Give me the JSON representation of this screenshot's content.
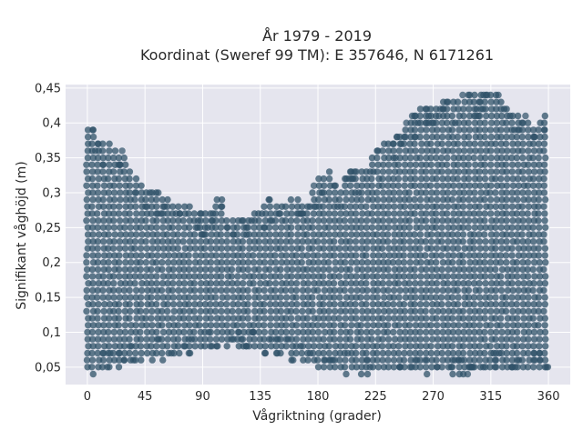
{
  "chart_data": {
    "type": "scatter",
    "title": "År 1979 - 2019",
    "subtitle": "Koordinat (Sweref 99 TM): E 357646, N 6171261",
    "xlabel": "Vågriktning (grader)",
    "ylabel": "Signifikant våghöjd (m)",
    "xlim": [
      -17,
      377
    ],
    "ylim": [
      0.025,
      0.455
    ],
    "xticks": [
      0,
      45,
      90,
      135,
      180,
      225,
      270,
      315,
      360
    ],
    "xtick_labels": [
      "0",
      "45",
      "90",
      "135",
      "180",
      "225",
      "270",
      "315",
      "360"
    ],
    "yticks": [
      0.05,
      0.1,
      0.15,
      0.2,
      0.25,
      0.3,
      0.35,
      0.4,
      0.45
    ],
    "ytick_labels": [
      "0,05",
      "0,1",
      "0,15",
      "0,2",
      "0,25",
      "0,3",
      "0,35",
      "0,4",
      "0,45"
    ],
    "grid": true,
    "colors": {
      "background": "#e5e5ee",
      "point": "#2f5168",
      "grid": "#ffffff"
    },
    "series": [
      {
        "values_description": "dense scatter; y quantized to 0.01 m; envelope given as [direction, min_height, max_height]",
        "envelope": [
          [
            0,
            0.05,
            0.39
          ],
          [
            5,
            0.04,
            0.4
          ],
          [
            10,
            0.05,
            0.37
          ],
          [
            15,
            0.05,
            0.37
          ],
          [
            20,
            0.06,
            0.37
          ],
          [
            25,
            0.05,
            0.36
          ],
          [
            30,
            0.06,
            0.35
          ],
          [
            35,
            0.06,
            0.33
          ],
          [
            40,
            0.06,
            0.32
          ],
          [
            45,
            0.07,
            0.3
          ],
          [
            50,
            0.06,
            0.31
          ],
          [
            55,
            0.07,
            0.3
          ],
          [
            60,
            0.06,
            0.29
          ],
          [
            65,
            0.07,
            0.29
          ],
          [
            70,
            0.07,
            0.28
          ],
          [
            75,
            0.08,
            0.28
          ],
          [
            80,
            0.07,
            0.28
          ],
          [
            85,
            0.08,
            0.27
          ],
          [
            90,
            0.08,
            0.27
          ],
          [
            95,
            0.08,
            0.27
          ],
          [
            100,
            0.08,
            0.29
          ],
          [
            105,
            0.09,
            0.29
          ],
          [
            110,
            0.08,
            0.26
          ],
          [
            115,
            0.09,
            0.26
          ],
          [
            120,
            0.08,
            0.26
          ],
          [
            125,
            0.08,
            0.26
          ],
          [
            130,
            0.08,
            0.27
          ],
          [
            135,
            0.08,
            0.27
          ],
          [
            140,
            0.07,
            0.29
          ],
          [
            145,
            0.08,
            0.29
          ],
          [
            150,
            0.07,
            0.28
          ],
          [
            155,
            0.08,
            0.28
          ],
          [
            160,
            0.06,
            0.3
          ],
          [
            165,
            0.07,
            0.29
          ],
          [
            170,
            0.06,
            0.28
          ],
          [
            175,
            0.06,
            0.3
          ],
          [
            180,
            0.05,
            0.32
          ],
          [
            185,
            0.05,
            0.33
          ],
          [
            190,
            0.05,
            0.33
          ],
          [
            195,
            0.05,
            0.3
          ],
          [
            200,
            0.04,
            0.32
          ],
          [
            205,
            0.05,
            0.33
          ],
          [
            210,
            0.05,
            0.33
          ],
          [
            215,
            0.04,
            0.33
          ],
          [
            220,
            0.04,
            0.34
          ],
          [
            225,
            0.05,
            0.36
          ],
          [
            230,
            0.05,
            0.37
          ],
          [
            235,
            0.05,
            0.37
          ],
          [
            240,
            0.05,
            0.38
          ],
          [
            245,
            0.05,
            0.39
          ],
          [
            250,
            0.05,
            0.4
          ],
          [
            255,
            0.05,
            0.41
          ],
          [
            260,
            0.05,
            0.42
          ],
          [
            265,
            0.04,
            0.42
          ],
          [
            270,
            0.05,
            0.42
          ],
          [
            275,
            0.05,
            0.43
          ],
          [
            280,
            0.05,
            0.43
          ],
          [
            285,
            0.04,
            0.43
          ],
          [
            290,
            0.04,
            0.43
          ],
          [
            295,
            0.04,
            0.44
          ],
          [
            300,
            0.05,
            0.44
          ],
          [
            305,
            0.05,
            0.44
          ],
          [
            310,
            0.05,
            0.44
          ],
          [
            315,
            0.05,
            0.44
          ],
          [
            320,
            0.05,
            0.44
          ],
          [
            325,
            0.05,
            0.43
          ],
          [
            330,
            0.05,
            0.42
          ],
          [
            335,
            0.05,
            0.41
          ],
          [
            340,
            0.05,
            0.41
          ],
          [
            345,
            0.05,
            0.4
          ],
          [
            350,
            0.05,
            0.39
          ],
          [
            355,
            0.05,
            0.41
          ],
          [
            360,
            0.05,
            0.41
          ]
        ]
      }
    ]
  }
}
